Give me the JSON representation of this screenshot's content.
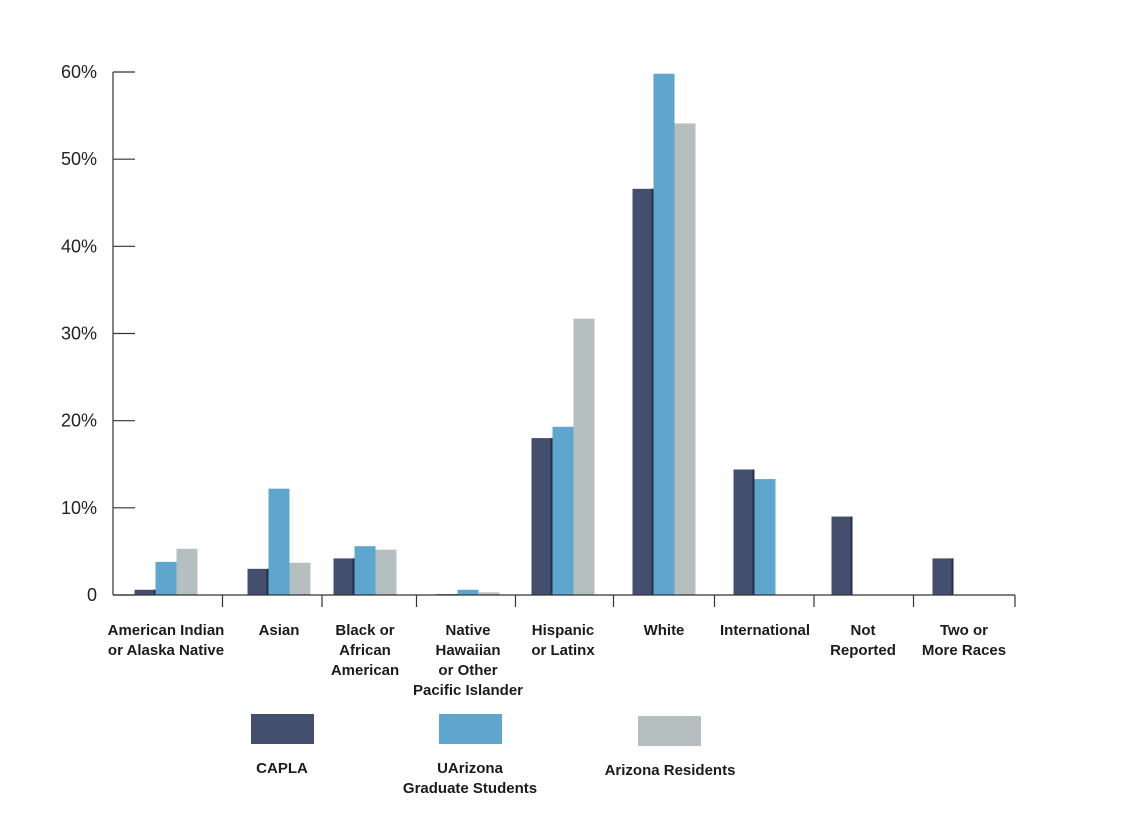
{
  "chart_data": {
    "type": "bar",
    "title": "",
    "xlabel": "",
    "ylabel": "",
    "ylim": [
      0,
      60
    ],
    "y_ticks": [
      {
        "value": 0,
        "label": "0"
      },
      {
        "value": 10,
        "label": "10%"
      },
      {
        "value": 20,
        "label": "20%"
      },
      {
        "value": 30,
        "label": "30%"
      },
      {
        "value": 40,
        "label": "40%"
      },
      {
        "value": 50,
        "label": "50%"
      },
      {
        "value": 60,
        "label": "60%"
      }
    ],
    "categories": [
      "American Indian or Alaska Native",
      "Asian",
      "Black or African American",
      "Native Hawaiian or Other Pacific Islander",
      "Hispanic or Latinx",
      "White",
      "International",
      "Not Reported",
      "Two or More Races"
    ],
    "category_label_lines": [
      [
        "American Indian",
        "or Alaska Native"
      ],
      [
        "Asian"
      ],
      [
        "Black or",
        "African",
        "American"
      ],
      [
        "Native",
        "Hawaiian",
        "or Other",
        "Pacific Islander"
      ],
      [
        "Hispanic",
        "or Latinx"
      ],
      [
        "White"
      ],
      [
        "International"
      ],
      [
        "Not",
        "Reported"
      ],
      [
        "Two or",
        "More Races"
      ]
    ],
    "series": [
      {
        "name": "CAPLA",
        "color": "#434f6d",
        "values": [
          0.6,
          3.0,
          4.2,
          0.1,
          18.0,
          46.6,
          14.4,
          9.0,
          4.2
        ]
      },
      {
        "name": "UArizona Graduate Students",
        "color": "#5fa6cf",
        "values": [
          3.8,
          12.2,
          5.6,
          0.6,
          19.3,
          59.8,
          13.3,
          0,
          0
        ]
      },
      {
        "name": "Arizona Residents",
        "color": "#b6bfbf",
        "values": [
          5.3,
          3.7,
          5.2,
          0.3,
          31.7,
          54.1,
          0,
          0,
          0
        ]
      }
    ],
    "legend": {
      "placement": "bottom",
      "items": [
        {
          "lines": [
            "CAPLA"
          ]
        },
        {
          "lines": [
            "UArizona",
            "Graduate Students"
          ]
        },
        {
          "lines": [
            "Arizona Residents"
          ]
        }
      ]
    },
    "grid": false
  }
}
